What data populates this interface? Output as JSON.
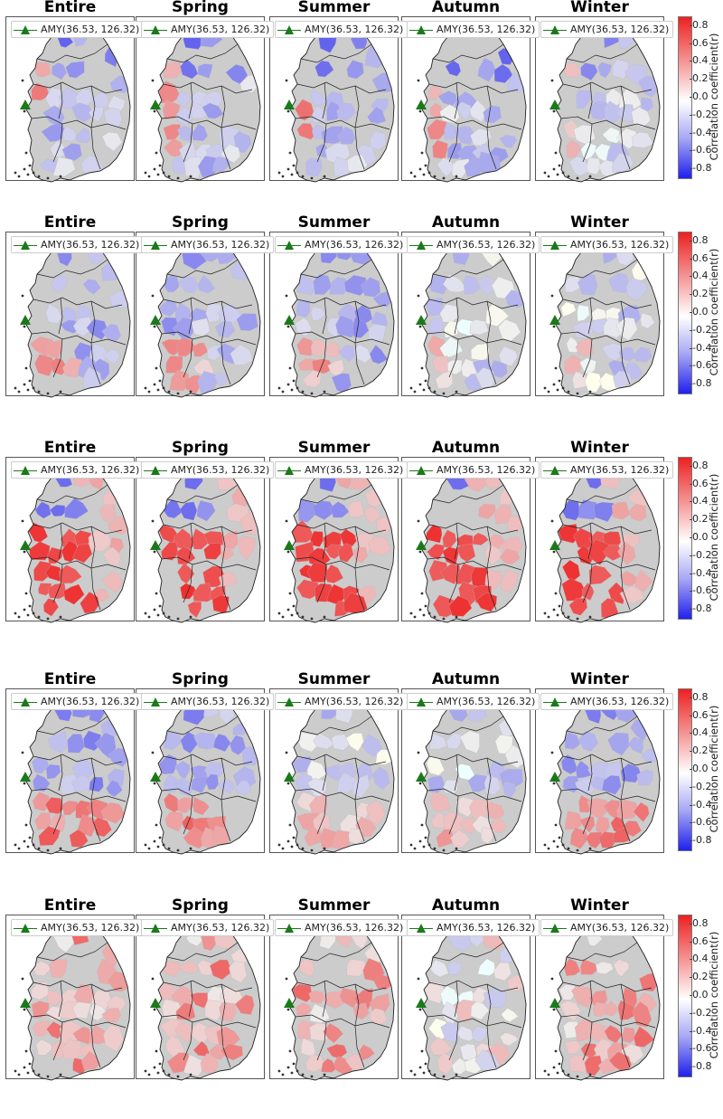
{
  "panel_titles": [
    "Entire",
    "Spring",
    "Summer",
    "Autumn",
    "Winter"
  ],
  "legend_label": "AMY(36.53, 126.32)",
  "colorbar": {
    "label": "Correlation coefficient(r)",
    "ticks": [
      "0.8",
      "0.6",
      "0.4",
      "0.2",
      "0.0",
      "-0.2",
      "-0.4",
      "-0.6",
      "-0.8"
    ],
    "range": [
      -0.9,
      0.9
    ],
    "colors": {
      "high": "#ee2020",
      "mid": "#ffffff",
      "low": "#2020ee"
    }
  },
  "marker_icon": "green-triangle-icon",
  "colors": {
    "land": "#cccccc",
    "border": "#222222",
    "marker": "#1a7a1a"
  },
  "rows": [
    {
      "panels": [
        {
          "season": "Entire",
          "pattern": "negative-north, positive-west"
        },
        {
          "season": "Spring",
          "pattern": "weak negative center"
        },
        {
          "season": "Summer",
          "pattern": "positive west coast, negative center"
        },
        {
          "season": "Autumn",
          "pattern": "mixed, negative center"
        },
        {
          "season": "Winter",
          "pattern": "weak mixed"
        }
      ]
    },
    {
      "panels": [
        {
          "season": "Entire",
          "pattern": "negative center"
        },
        {
          "season": "Spring",
          "pattern": "positive southwest, negative north"
        },
        {
          "season": "Summer",
          "pattern": "negative center"
        },
        {
          "season": "Autumn",
          "pattern": "weak mixed"
        },
        {
          "season": "Winter",
          "pattern": "weak mixed"
        }
      ]
    },
    {
      "panels": [
        {
          "season": "Entire",
          "pattern": "strong positive southwest"
        },
        {
          "season": "Spring",
          "pattern": "strong positive southwest"
        },
        {
          "season": "Summer",
          "pattern": "strong positive southwest"
        },
        {
          "season": "Autumn",
          "pattern": "strong positive southwest"
        },
        {
          "season": "Winter",
          "pattern": "strong positive southwest"
        }
      ]
    },
    {
      "panels": [
        {
          "season": "Entire",
          "pattern": "negative north, positive south"
        },
        {
          "season": "Spring",
          "pattern": "mixed, positive south"
        },
        {
          "season": "Summer",
          "pattern": "weak mixed"
        },
        {
          "season": "Autumn",
          "pattern": "weak negative"
        },
        {
          "season": "Winter",
          "pattern": "positive southeast"
        }
      ]
    },
    {
      "panels": [
        {
          "season": "Entire",
          "pattern": "mixed"
        },
        {
          "season": "Spring",
          "pattern": "positive"
        },
        {
          "season": "Summer",
          "pattern": "weak positive"
        },
        {
          "season": "Autumn",
          "pattern": "weak mixed"
        },
        {
          "season": "Winter",
          "pattern": "mixed"
        }
      ]
    }
  ]
}
